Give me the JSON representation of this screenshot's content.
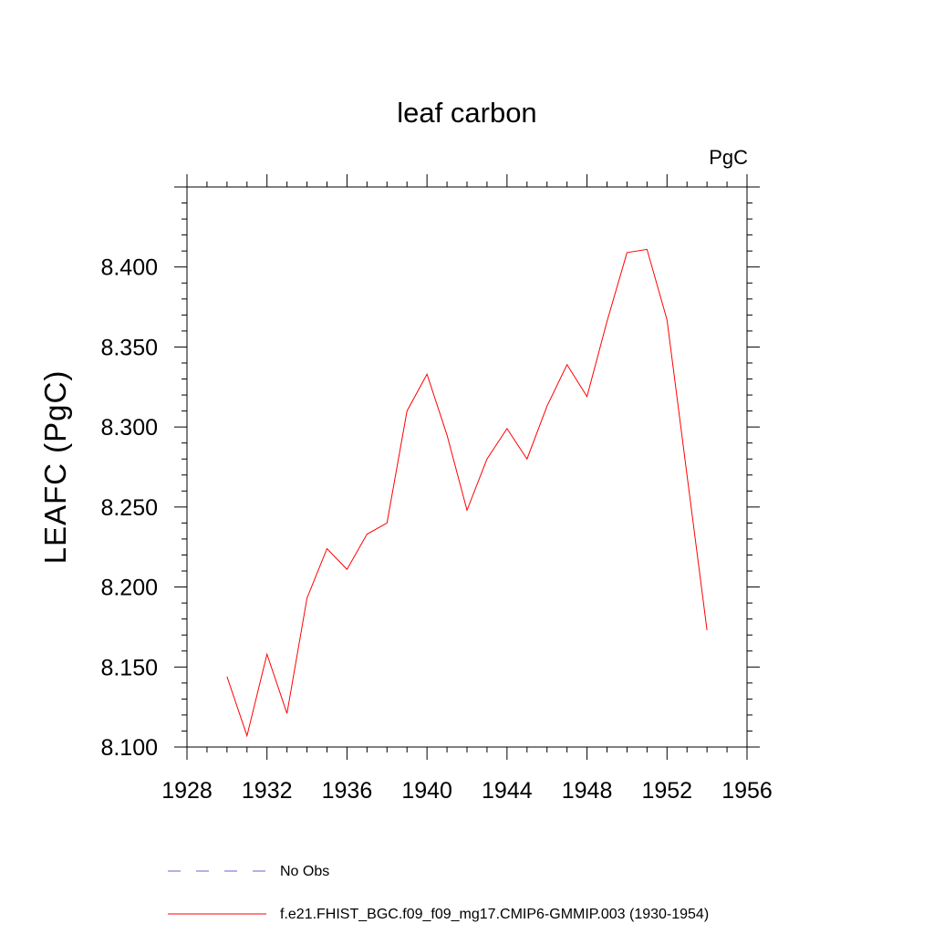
{
  "chart_data": {
    "type": "line",
    "title": "leaf carbon",
    "units_label": "PgC",
    "xlabel": "",
    "ylabel": "LEAFC  (PgC)",
    "xlim": [
      1928,
      1956
    ],
    "ylim": [
      8.1,
      8.45
    ],
    "x_ticks": [
      1928,
      1932,
      1936,
      1940,
      1944,
      1948,
      1952,
      1956
    ],
    "x_tick_labels": [
      "1928",
      "1932",
      "1936",
      "1940",
      "1944",
      "1948",
      "1952",
      "1956"
    ],
    "y_ticks": [
      8.1,
      8.15,
      8.2,
      8.25,
      8.3,
      8.35,
      8.4
    ],
    "y_tick_labels": [
      "8.100",
      "8.150",
      "8.200",
      "8.250",
      "8.300",
      "8.350",
      "8.400"
    ],
    "grid": false,
    "legend_position": "bottom",
    "series": [
      {
        "name": "f.e21.FHIST_BGC.f09_f09_mg17.CMIP6-GMMIP.003 (1930-1954)",
        "color": "#ff0000",
        "style": "solid",
        "x": [
          1930,
          1931,
          1932,
          1933,
          1934,
          1935,
          1936,
          1937,
          1938,
          1939,
          1940,
          1941,
          1942,
          1943,
          1944,
          1945,
          1946,
          1947,
          1948,
          1949,
          1950,
          1951,
          1952,
          1953,
          1954
        ],
        "values": [
          8.144,
          8.107,
          8.158,
          8.121,
          8.193,
          8.224,
          8.211,
          8.233,
          8.24,
          8.31,
          8.333,
          8.295,
          8.248,
          8.28,
          8.299,
          8.28,
          8.313,
          8.339,
          8.319,
          8.366,
          8.409,
          8.411,
          8.367,
          8.27,
          8.173
        ]
      }
    ],
    "legend": [
      {
        "label": "No Obs",
        "color": "#6666cc",
        "style": "dashed"
      },
      {
        "label": "f.e21.FHIST_BGC.f09_f09_mg17.CMIP6-GMMIP.003 (1930-1954)",
        "color": "#ff0000",
        "style": "solid"
      }
    ]
  }
}
